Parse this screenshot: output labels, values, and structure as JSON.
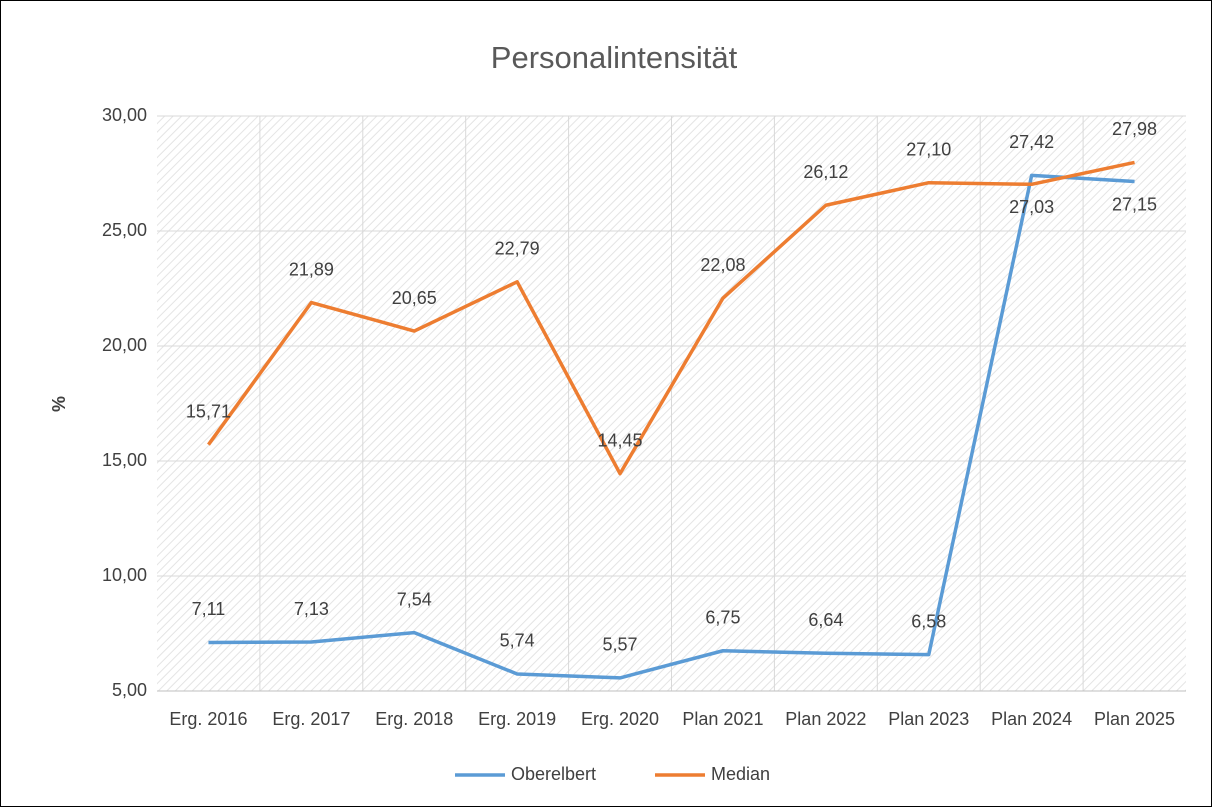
{
  "chart_data": {
    "type": "line",
    "title": "Personalintensität",
    "y_label": "%",
    "categories": [
      "Erg. 2016",
      "Erg. 2017",
      "Erg. 2018",
      "Erg. 2019",
      "Erg. 2020",
      "Plan 2021",
      "Plan 2022",
      "Plan 2023",
      "Plan 2024",
      "Plan 2025"
    ],
    "series": [
      {
        "name": "Oberelbert",
        "color": "#5b9bd5",
        "values": [
          7.11,
          7.13,
          7.54,
          5.74,
          5.57,
          6.75,
          6.64,
          6.58,
          27.42,
          27.15
        ],
        "value_labels": [
          "7,11",
          "7,13",
          "7,54",
          "5,74",
          "5,57",
          "6,75",
          "6,64",
          "6,58",
          "27,42",
          "27,15"
        ]
      },
      {
        "name": "Median",
        "color": "#ed7d31",
        "values": [
          15.71,
          21.89,
          20.65,
          22.79,
          14.45,
          22.08,
          26.12,
          27.1,
          27.03,
          27.98
        ],
        "value_labels": [
          "15,71",
          "21,89",
          "20,65",
          "22,79",
          "14,45",
          "22,08",
          "26,12",
          "27,10",
          "27,03",
          "27,98"
        ]
      }
    ],
    "ylim": [
      5,
      30
    ],
    "yticks": [
      {
        "value": 5,
        "label": "5,00"
      },
      {
        "value": 10,
        "label": "10,00"
      },
      {
        "value": 15,
        "label": "15,00"
      },
      {
        "value": 20,
        "label": "20,00"
      },
      {
        "value": 25,
        "label": "25,00"
      },
      {
        "value": 30,
        "label": "30,00"
      }
    ],
    "grid": true,
    "legend": "bottom"
  }
}
